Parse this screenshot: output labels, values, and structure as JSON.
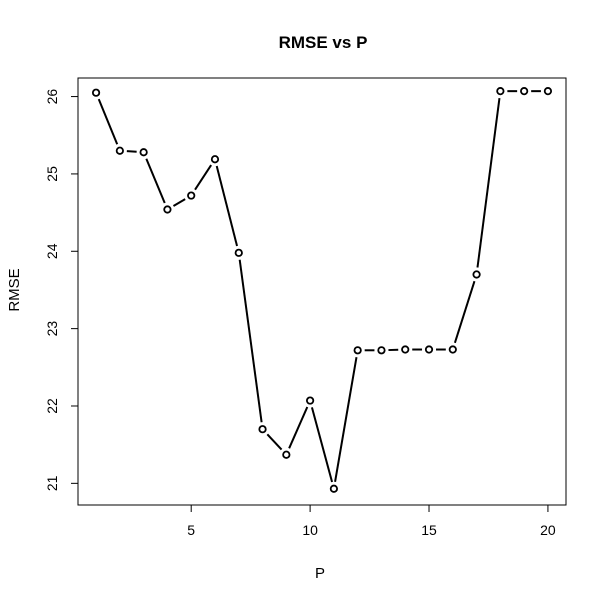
{
  "chart_data": {
    "type": "line",
    "title": "RMSE vs P",
    "xlabel": "P",
    "ylabel": "RMSE",
    "xlim": [
      0.24,
      20.76
    ],
    "ylim": [
      20.72,
      26.24
    ],
    "xticks": [
      5,
      10,
      15,
      20
    ],
    "yticks": [
      21,
      22,
      23,
      24,
      25,
      26
    ],
    "grid": false,
    "legend": "none",
    "line_color": "#000000",
    "marker": "open-circle",
    "series": [
      {
        "x": [
          1,
          2,
          3,
          4,
          5,
          6,
          7,
          8,
          9,
          10,
          11,
          12,
          13,
          14,
          15,
          16,
          17,
          18,
          19,
          20
        ],
        "values": [
          26.05,
          25.3,
          25.28,
          24.54,
          24.72,
          25.19,
          23.98,
          21.7,
          21.37,
          22.07,
          20.93,
          22.72,
          22.72,
          22.73,
          22.73,
          22.73,
          23.7,
          26.07,
          26.07,
          26.07
        ]
      }
    ]
  }
}
